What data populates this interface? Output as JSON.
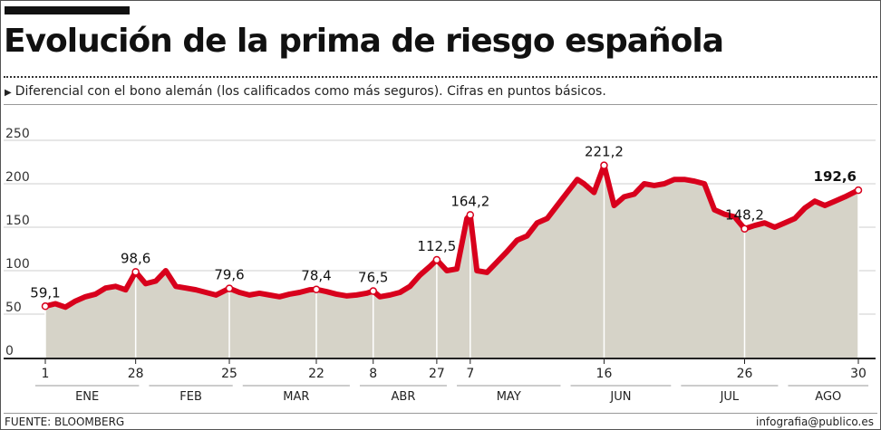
{
  "header": {
    "title": "Evolución de la prima de riesgo española",
    "subtitle": "Diferencial con el bono alemán (los calificados como más seguros). Cifras en puntos básicos."
  },
  "footer": {
    "source": "FUENTE: BLOOMBERG",
    "credit": "infografia@publico.es"
  },
  "colors": {
    "line": "#d8001c",
    "area": "#d6d3c8",
    "grid": "#cfcfcf"
  },
  "chart_data": {
    "type": "area",
    "ylim": [
      0,
      250
    ],
    "yticks": [
      0,
      50,
      100,
      150,
      200,
      250
    ],
    "grid": true,
    "xticks": [
      {
        "label": "1",
        "x": 0
      },
      {
        "label": "28",
        "x": 27
      },
      {
        "label": "25",
        "x": 55
      },
      {
        "label": "22",
        "x": 81
      },
      {
        "label": "8",
        "x": 98
      },
      {
        "label": "27",
        "x": 117
      },
      {
        "label": "7",
        "x": 127
      },
      {
        "label": "16",
        "x": 167
      },
      {
        "label": "26",
        "x": 209
      },
      {
        "label": "30",
        "x": 243
      }
    ],
    "months": [
      {
        "label": "ENE",
        "start": -3,
        "end": 28
      },
      {
        "label": "FEB",
        "start": 31,
        "end": 56
      },
      {
        "label": "MAR",
        "start": 59,
        "end": 91
      },
      {
        "label": "ABR",
        "start": 94,
        "end": 120
      },
      {
        "label": "MAY",
        "start": 123,
        "end": 154
      },
      {
        "label": "JUN",
        "start": 157,
        "end": 187
      },
      {
        "label": "JUL",
        "start": 190,
        "end": 219
      },
      {
        "label": "AGO",
        "start": 222,
        "end": 246
      }
    ],
    "series": [
      {
        "x": [
          0,
          3,
          6,
          9,
          12,
          15,
          18,
          21,
          24,
          27,
          30,
          33,
          36,
          39,
          42,
          45,
          48,
          51,
          55,
          58,
          61,
          64,
          67,
          70,
          73,
          76,
          79,
          81,
          84,
          87,
          90,
          93,
          96,
          98,
          100,
          103,
          106,
          109,
          112,
          115,
          117,
          120,
          123,
          126,
          127,
          129,
          132,
          135,
          138,
          141,
          144,
          147,
          150,
          153,
          156,
          159,
          161,
          164,
          167,
          170,
          173,
          176,
          179,
          182,
          185,
          188,
          191,
          194,
          197,
          200,
          203,
          206,
          209,
          212,
          215,
          218,
          221,
          224,
          227,
          230,
          233,
          236,
          239,
          243
        ],
        "values": [
          59.1,
          62,
          58,
          65,
          70,
          73,
          80,
          82,
          78,
          98.6,
          85,
          88,
          100,
          82,
          80,
          78,
          75,
          72,
          79.6,
          75,
          72,
          74,
          72,
          70,
          73,
          75,
          78,
          78.4,
          76,
          73,
          71,
          72,
          74,
          76.5,
          70,
          72,
          75,
          82,
          95,
          105,
          112.5,
          100,
          102,
          160,
          164.2,
          100,
          98,
          110,
          122,
          135,
          140,
          155,
          160,
          175,
          190,
          205,
          200,
          190,
          221.2,
          175,
          185,
          188,
          200,
          198,
          200,
          205,
          205,
          203,
          200,
          170,
          165,
          162,
          148.2,
          152,
          155,
          150,
          155,
          160,
          172,
          180,
          175,
          180,
          185,
          192.6
        ],
        "labels": [
          {
            "x": 0,
            "text": "59,1",
            "bold": false
          },
          {
            "x": 27,
            "text": "98,6",
            "bold": false
          },
          {
            "x": 55,
            "text": "79,6",
            "bold": false
          },
          {
            "x": 81,
            "text": "78,4",
            "bold": false
          },
          {
            "x": 98,
            "text": "76,5",
            "bold": false
          },
          {
            "x": 117,
            "text": "112,5",
            "bold": false
          },
          {
            "x": 127,
            "text": "164,2",
            "bold": false
          },
          {
            "x": 167,
            "text": "221,2",
            "bold": false
          },
          {
            "x": 209,
            "text": "148,2",
            "bold": false
          },
          {
            "x": 243,
            "text": "192,6",
            "bold": true
          }
        ]
      }
    ]
  }
}
